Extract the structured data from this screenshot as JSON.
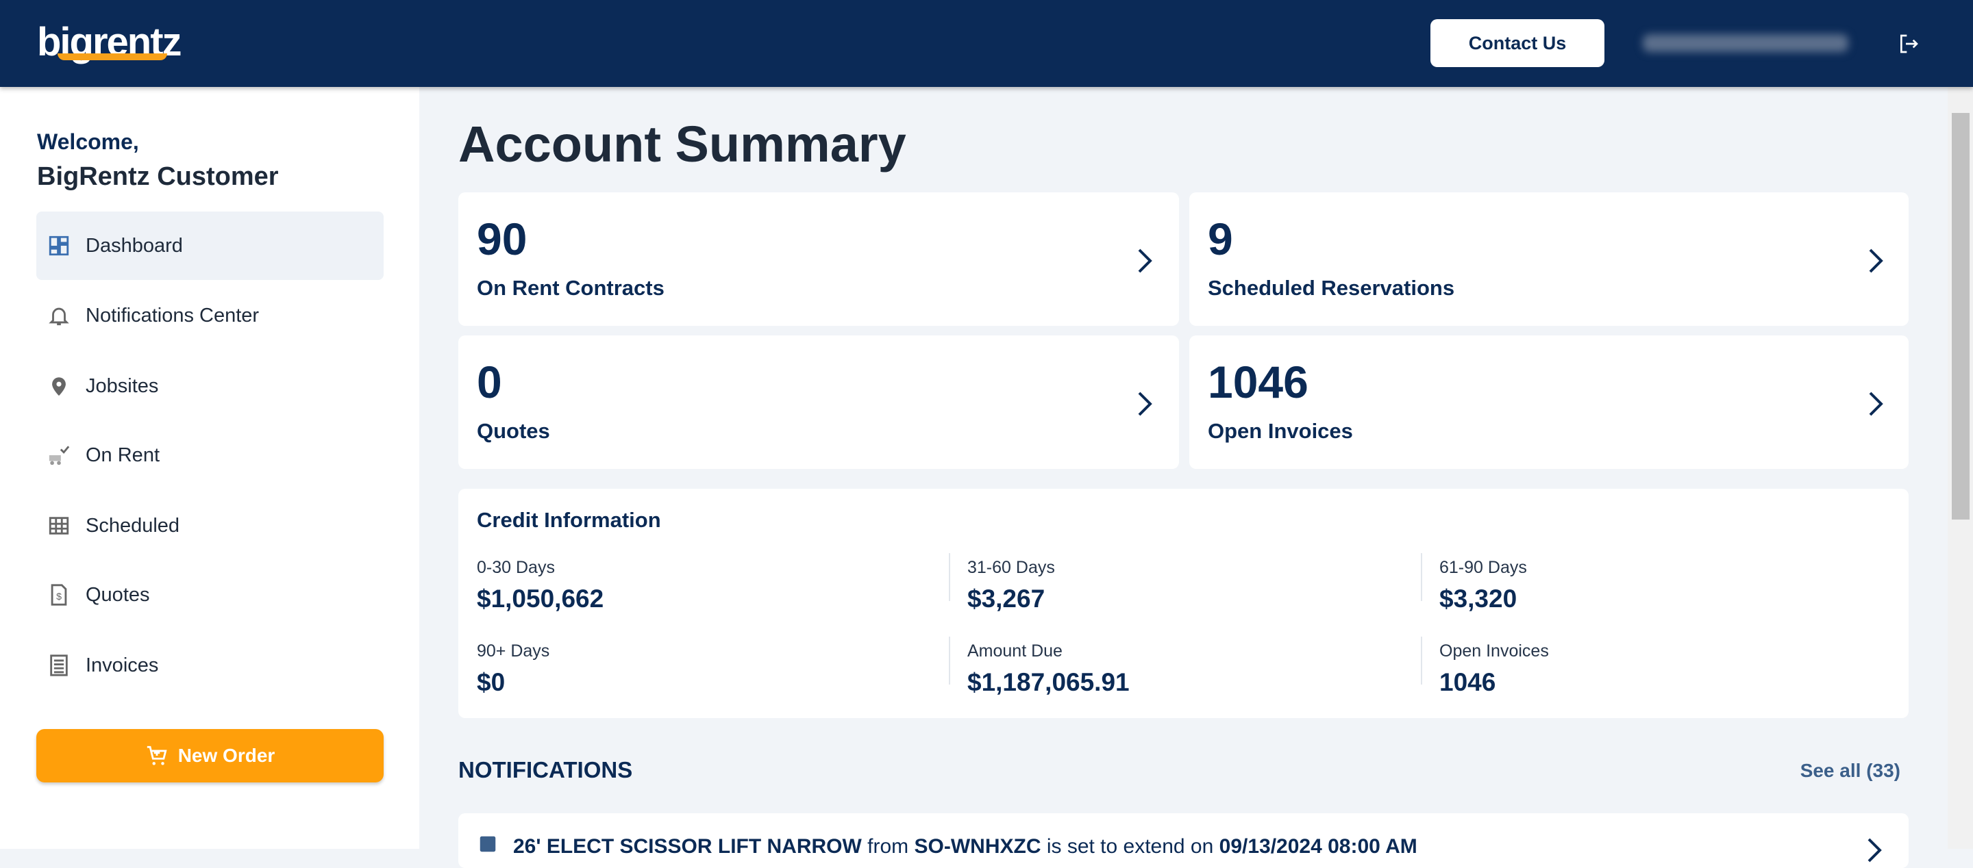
{
  "header": {
    "logo": "bigrentz",
    "contact_button": "Contact Us"
  },
  "sidebar": {
    "welcome": "Welcome,",
    "user_name": "BigRentz Customer",
    "nav": [
      "Dashboard",
      "Notifications Center",
      "Jobsites",
      "On Rent",
      "Scheduled",
      "Quotes",
      "Invoices"
    ],
    "new_order": "New Order"
  },
  "main": {
    "title": "Account Summary",
    "summary_cards": [
      {
        "value": "90",
        "label": "On Rent Contracts"
      },
      {
        "value": "9",
        "label": "Scheduled Reservations"
      },
      {
        "value": "0",
        "label": "Quotes"
      },
      {
        "value": "1046",
        "label": "Open Invoices"
      }
    ],
    "credit": {
      "title": "Credit Information",
      "items": [
        {
          "label": "0-30 Days",
          "value": "$1,050,662"
        },
        {
          "label": "31-60 Days",
          "value": "$3,267"
        },
        {
          "label": "61-90 Days",
          "value": "$3,320"
        },
        {
          "label": "90+ Days",
          "value": "$0"
        },
        {
          "label": "Amount Due",
          "value": "$1,187,065.91"
        },
        {
          "label": "Open Invoices",
          "value": "1046"
        }
      ]
    },
    "notifications": {
      "title": "NOTIFICATIONS",
      "see_all": "See all (33)",
      "items": [
        {
          "parts": [
            "26' ELECT SCISSOR LIFT NARROW",
            " from ",
            "SO-WNHXZC",
            " is set to extend on ",
            "09/13/2024 08:00 AM"
          ]
        }
      ]
    }
  }
}
